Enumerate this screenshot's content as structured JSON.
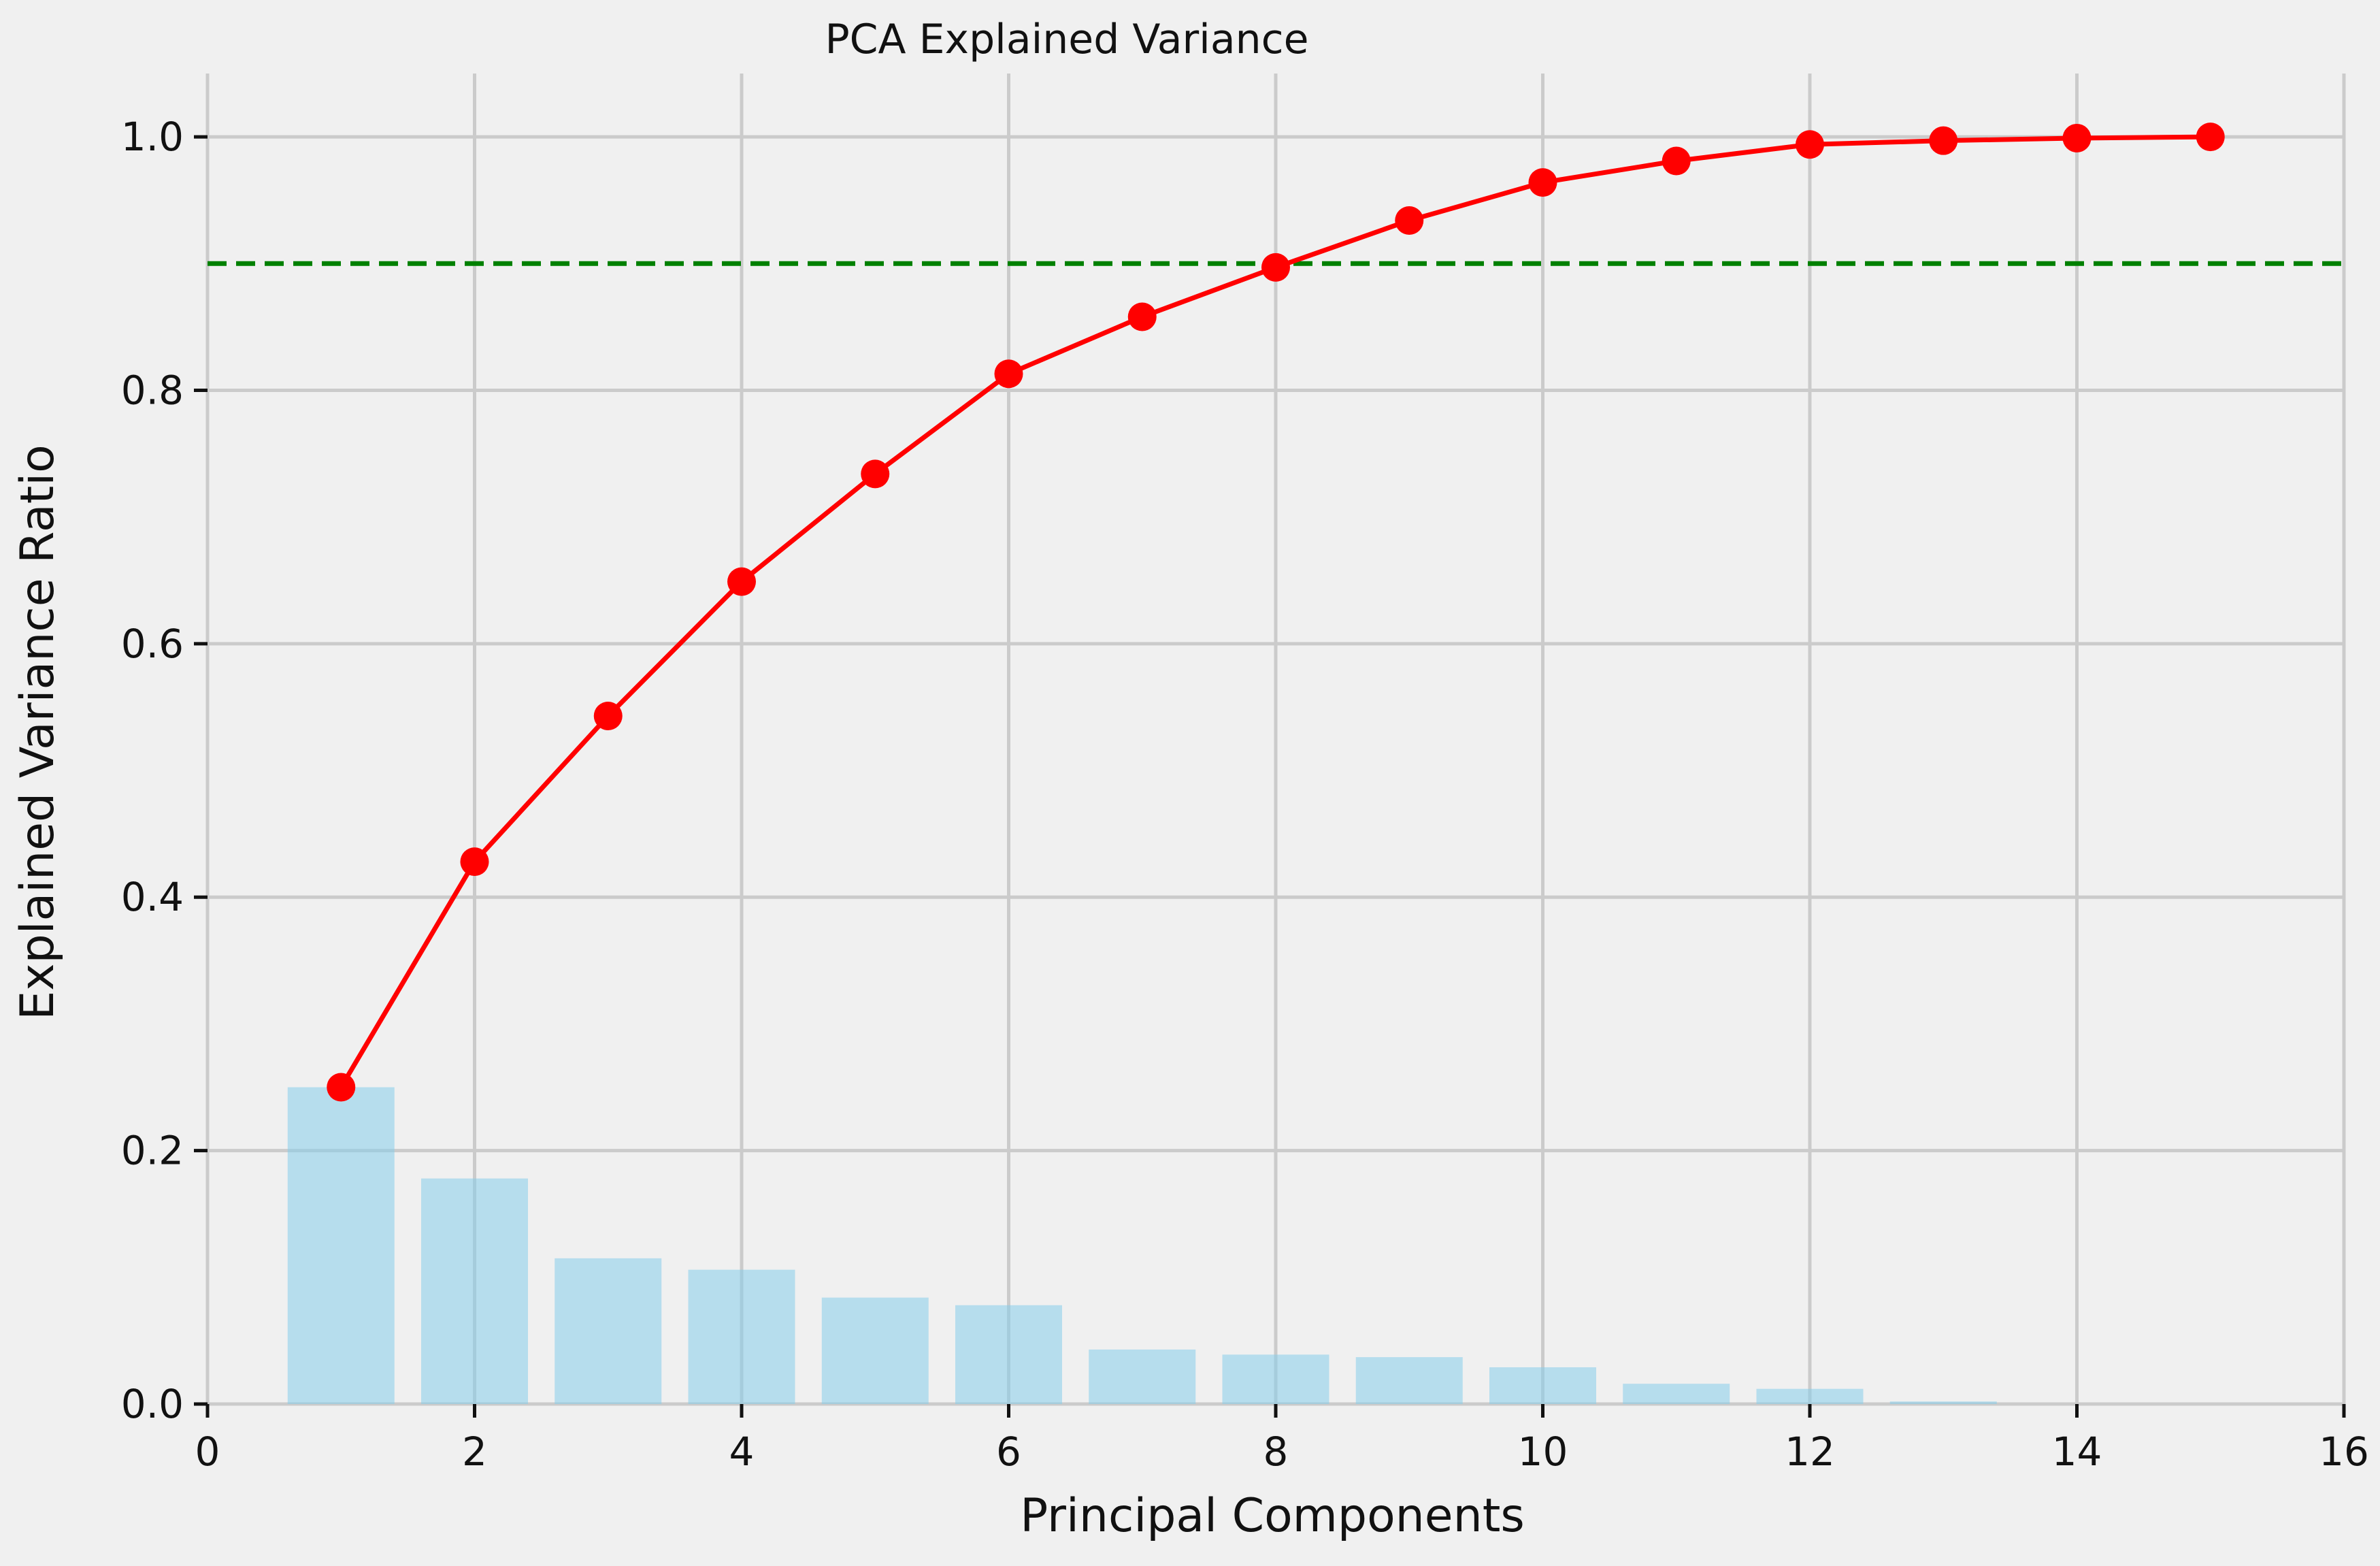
{
  "chart_data": {
    "type": "bar",
    "title": "PCA Explained Variance",
    "xlabel": "Principal Components",
    "ylabel": "Explained Variance Ratio",
    "xlim": [
      0,
      16
    ],
    "ylim": [
      0,
      1.05
    ],
    "xticks": [
      0,
      2,
      4,
      6,
      8,
      10,
      12,
      14,
      16
    ],
    "yticks": [
      0.0,
      0.2,
      0.4,
      0.6,
      0.8,
      1.0
    ],
    "xtick_labels": [
      "0",
      "2",
      "4",
      "6",
      "8",
      "10",
      "12",
      "14",
      "16"
    ],
    "ytick_labels": [
      "0.0",
      "0.2",
      "0.4",
      "0.6",
      "0.8",
      "1.0"
    ],
    "grid": true,
    "components": [
      1,
      2,
      3,
      4,
      5,
      6,
      7,
      8,
      9,
      10,
      11,
      12,
      13,
      14,
      15
    ],
    "series": [
      {
        "kind": "bar",
        "values": [
          0.25,
          0.178,
          0.115,
          0.106,
          0.084,
          0.078,
          0.043,
          0.039,
          0.037,
          0.029,
          0.016,
          0.012,
          0.002,
          0.0,
          0.0
        ],
        "color": "#87ceeb",
        "opacity": 0.55
      },
      {
        "kind": "line",
        "values": [
          0.25,
          0.428,
          0.543,
          0.649,
          0.734,
          0.813,
          0.858,
          0.897,
          0.934,
          0.964,
          0.981,
          0.994,
          0.997,
          0.999,
          1.0
        ],
        "color": "#ff0000",
        "marker": "circle"
      }
    ],
    "threshold": {
      "value": 0.9,
      "style": "dashed",
      "color": "#008000"
    },
    "colors": {
      "background": "#f0f0f0",
      "grid": "#cbcbcb",
      "text": "#111111"
    }
  }
}
